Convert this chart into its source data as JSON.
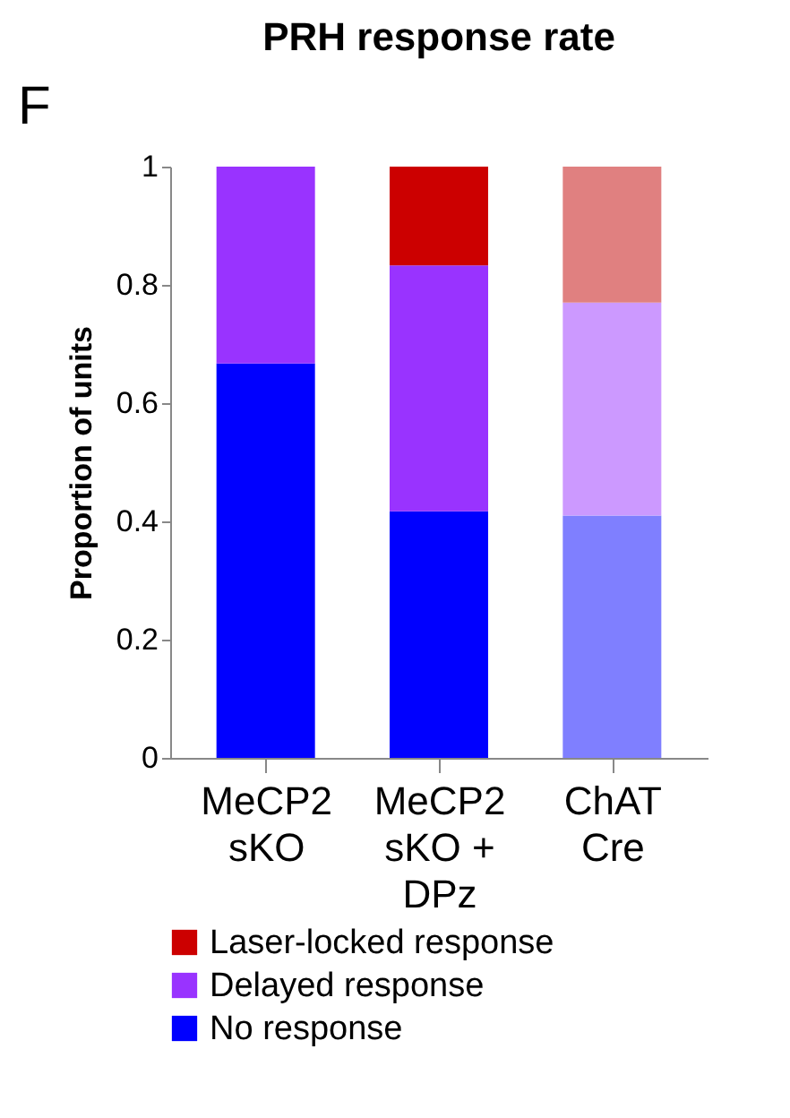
{
  "chart_data": {
    "type": "bar",
    "title": "PRH response rate",
    "ylabel": "Proportion of units",
    "categories": [
      "MeCP2\nsKO",
      "MeCP2\nsKO +\nDPz",
      "ChAT\nCre"
    ],
    "stacked": true,
    "ylim": [
      0,
      1
    ],
    "yticks": [
      0,
      0.2,
      0.4,
      0.6,
      0.8,
      1
    ],
    "grid": false,
    "legend": "bottom",
    "annotations": [
      "F"
    ],
    "series": [
      {
        "name": "No response",
        "color": "#0000ff",
        "colors": [
          "#0000ff",
          "#0000ff",
          "#7f7fff"
        ],
        "values": [
          0.667,
          0.417,
          0.41
        ]
      },
      {
        "name": "Delayed response",
        "color": "#9933ff",
        "colors": [
          "#9933ff",
          "#9933ff",
          "#cc99ff"
        ],
        "values": [
          0.333,
          0.416,
          0.36
        ]
      },
      {
        "name": "Laser-locked response",
        "color": "#cc0000",
        "colors": [
          "#cc0000",
          "#cc0000",
          "#e08080"
        ],
        "values": [
          0,
          0.167,
          0.23
        ]
      }
    ]
  }
}
